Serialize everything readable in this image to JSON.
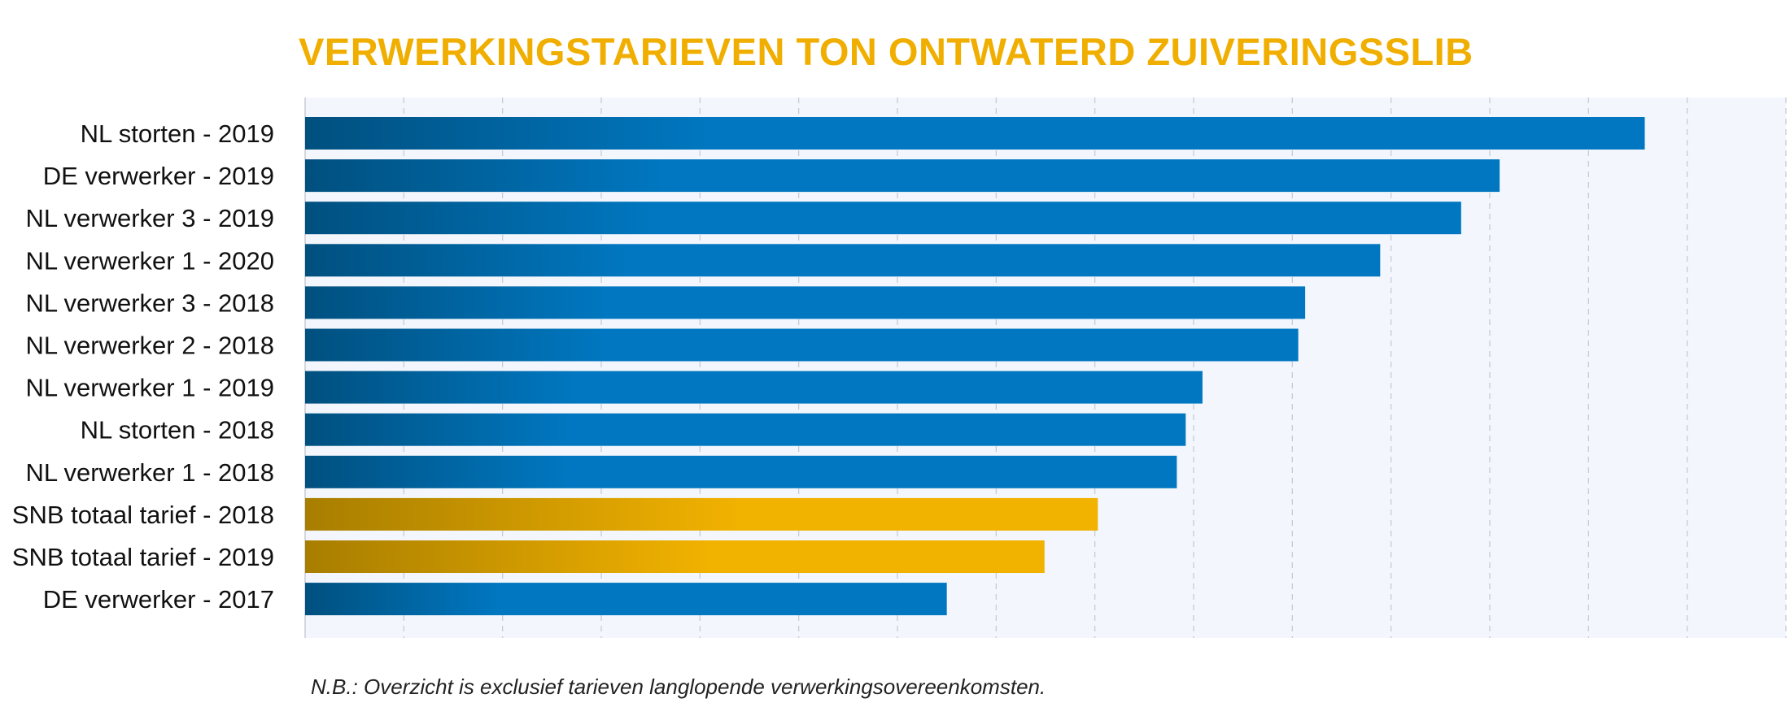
{
  "title": "VERWERKINGSTARIEVEN TON ONTWATERD ZUIVERINGSSLIB",
  "footnote": "N.B.: Overzicht is exclusief tarieven langlopende verwerkingsovereenkomsten.",
  "colors": {
    "title": "#f0ae00",
    "bar_blue_start": "#00507f",
    "bar_blue_end": "#0077c0",
    "bar_gold_start": "#a87e00",
    "bar_gold_end": "#f2b200",
    "plot_background": "#f3f6fc",
    "gridline": "#c4c8d0"
  },
  "chart_data": {
    "type": "bar",
    "orientation": "horizontal",
    "grid": true,
    "xlim": [
      0,
      15
    ],
    "x_tick_labels_shown": false,
    "categories": [
      "NL storten - 2019",
      "DE verwerker - 2019",
      "NL verwerker 3 - 2019",
      "NL verwerker 1 - 2020",
      "NL verwerker 3 - 2018",
      "NL verwerker 2 - 2018",
      "NL verwerker 1 - 2019",
      "NL storten - 2018",
      "NL verwerker 1 - 2018",
      "SNB totaal tarief - 2018",
      "SNB totaal tarief - 2019",
      "DE verwerker - 2017"
    ],
    "values": [
      13.57,
      12.1,
      11.71,
      10.89,
      10.13,
      10.06,
      9.09,
      8.92,
      8.83,
      8.03,
      7.49,
      6.5
    ],
    "highlight": [
      false,
      false,
      false,
      false,
      false,
      false,
      false,
      false,
      false,
      true,
      true,
      false
    ]
  }
}
